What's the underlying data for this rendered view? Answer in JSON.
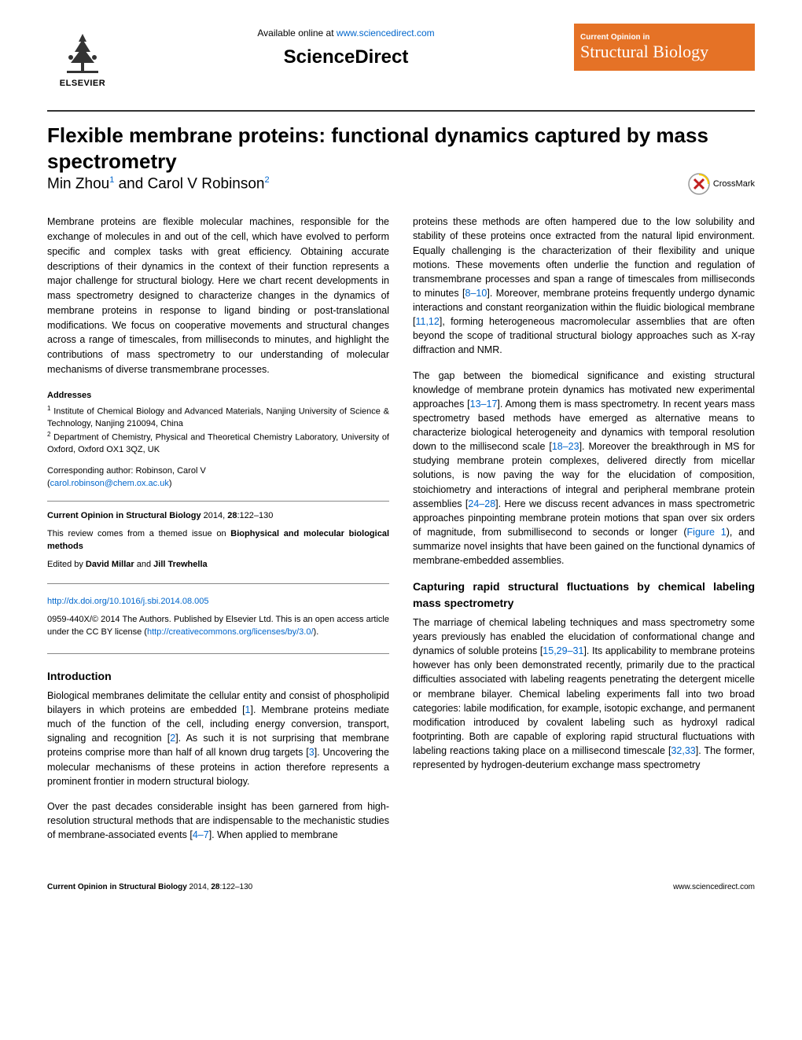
{
  "header": {
    "available_online_prefix": "Available online at ",
    "available_online_url": "www.sciencedirect.com",
    "sciencedirect": "ScienceDirect",
    "elsevier": "ELSEVIER",
    "journal_badge_small": "Current Opinion in",
    "journal_badge_large": "Structural Biology",
    "crossmark": "CrossMark"
  },
  "title": "Flexible membrane proteins: functional dynamics captured by mass spectrometry",
  "authors_html": "Min Zhou",
  "author1_sup": "1",
  "authors_and": " and Carol V Robinson",
  "author2_sup": "2",
  "abstract": "Membrane proteins are flexible molecular machines, responsible for the exchange of molecules in and out of the cell, which have evolved to perform specific and complex tasks with great efficiency. Obtaining accurate descriptions of their dynamics in the context of their function represents a major challenge for structural biology. Here we chart recent developments in mass spectrometry designed to characterize changes in the dynamics of membrane proteins in response to ligand binding or post-translational modifications. We focus on cooperative movements and structural changes across a range of timescales, from milliseconds to minutes, and highlight the contributions of mass spectrometry to our understanding of molecular mechanisms of diverse transmembrane processes.",
  "addresses_label": "Addresses",
  "addresses": {
    "a1_sup": "1",
    "a1": " Institute of Chemical Biology and Advanced Materials, Nanjing University of Science & Technology, Nanjing 210094, China",
    "a2_sup": "2",
    "a2": " Department of Chemistry, Physical and Theoretical Chemistry Laboratory, University of Oxford, Oxford OX1 3QZ, UK"
  },
  "corresponding_label": "Corresponding author: Robinson, Carol V",
  "corresponding_email": "carol.robinson@chem.ox.ac.uk",
  "meta": {
    "citation_journal": "Current Opinion in Structural Biology",
    "citation_rest": " 2014, ",
    "citation_vol": "28",
    "citation_pages": ":122–130",
    "themed_prefix": "This review comes from a themed issue on ",
    "themed_issue": "Biophysical and molecular biological methods",
    "edited_prefix": "Edited by ",
    "editors": "David Millar",
    "editors_and": " and ",
    "editors2": "Jill Trewhella"
  },
  "doi": {
    "url": "http://dx.doi.org/10.1016/j.sbi.2014.08.005",
    "copyright_prefix": "0959-440X/© 2014 The Authors. Published by Elsevier Ltd. This is an open access article under the CC BY license (",
    "license_url": "http://creativecommons.org/licenses/by/3.0/",
    "copyright_suffix": ")."
  },
  "sections": {
    "intro_heading": "Introduction",
    "intro_p1": "Biological membranes delimitate the cellular entity and consist of phospholipid bilayers in which proteins are embedded [1]. Membrane proteins mediate much of the function of the cell, including energy conversion, transport, signaling and recognition [2]. As such it is not surprising that membrane proteins comprise more than half of all known drug targets [3]. Uncovering the molecular mechanisms of these proteins in action therefore represents a prominent frontier in modern structural biology.",
    "intro_p2": "Over the past decades considerable insight has been garnered from high-resolution structural methods that are indispensable to the mechanistic studies of membrane-associated events [4–7]. When applied to membrane",
    "right_p1": "proteins these methods are often hampered due to the low solubility and stability of these proteins once extracted from the natural lipid environment. Equally challenging is the characterization of their flexibility and unique motions. These movements often underlie the function and regulation of transmembrane processes and span a range of timescales from milliseconds to minutes [8–10]. Moreover, membrane proteins frequently undergo dynamic interactions and constant reorganization within the fluidic biological membrane [11,12], forming heterogeneous macromolecular assemblies that are often beyond the scope of traditional structural biology approaches such as X-ray diffraction and NMR.",
    "right_p2": "The gap between the biomedical significance and existing structural knowledge of membrane protein dynamics has motivated new experimental approaches [13–17]. Among them is mass spectrometry. In recent years mass spectrometry based methods have emerged as alternative means to characterize biological heterogeneity and dynamics with temporal resolution down to the millisecond scale [18–23]. Moreover the breakthrough in MS for studying membrane protein complexes, delivered directly from micellar solutions, is now paving the way for the elucidation of composition, stoichiometry and interactions of integral and peripheral membrane protein assemblies [24–28]. Here we discuss recent advances in mass spectrometric approaches pinpointing membrane protein motions that span over six orders of magnitude, from submillisecond to seconds or longer (Figure 1), and summarize novel insights that have been gained on the functional dynamics of membrane-embedded assemblies.",
    "sec2_heading": "Capturing rapid structural fluctuations by chemical labeling mass spectrometry",
    "sec2_p1": "The marriage of chemical labeling techniques and mass spectrometry some years previously has enabled the elucidation of conformational change and dynamics of soluble proteins [15,29–31]. Its applicability to membrane proteins however has only been demonstrated recently, primarily due to the practical difficulties associated with labeling reagents penetrating the detergent micelle or membrane bilayer. Chemical labeling experiments fall into two broad categories: labile modification, for example, isotopic exchange, and permanent modification introduced by covalent labeling such as hydroxyl radical footprinting. Both are capable of exploring rapid structural fluctuations with labeling reactions taking place on a millisecond timescale [32,33]. The former, represented by hydrogen-deuterium exchange mass spectrometry"
  },
  "footer": {
    "left_journal": "Current Opinion in Structural Biology",
    "left_rest": " 2014, ",
    "left_vol": "28",
    "left_pages": ":122–130",
    "right": "www.sciencedirect.com"
  },
  "colors": {
    "link": "#0066cc",
    "badge_bg": "#e57226",
    "badge_fg": "#ffffff",
    "text": "#000000",
    "rule": "#888888"
  },
  "ref_links": {
    "r1": "1",
    "r2": "2",
    "r3": "3",
    "r4_7": "4–7",
    "r8_10": "8–10",
    "r11_12": "11,12",
    "r13_17": "13–17",
    "r18_23": "18–23",
    "r24_28": "24–28",
    "fig1": "Figure 1",
    "r15_29_31": "15,29–31",
    "r32_33": "32,33"
  }
}
